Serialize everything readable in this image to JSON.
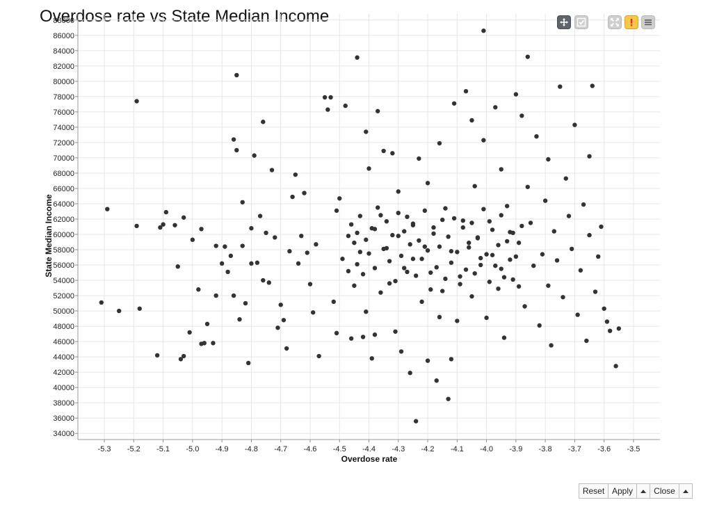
{
  "toolbar": {
    "tools": [
      {
        "name": "pan-tool",
        "icon": "move-icon",
        "active": true
      },
      {
        "name": "select-tool",
        "icon": "check-icon",
        "active": false
      },
      {
        "name": "fullscreen-tool",
        "icon": "expand-icon",
        "active": false
      },
      {
        "name": "warning-tool",
        "icon": "warning-icon",
        "active": false
      },
      {
        "name": "menu-tool",
        "icon": "menu-icon",
        "active": false
      }
    ]
  },
  "footer": {
    "reset_label": "Reset",
    "apply_label": "Apply",
    "close_label": "Close"
  },
  "chart_data": {
    "type": "scatter",
    "title": "Overdose rate vs State Median Income",
    "xlabel": "Overdose rate",
    "ylabel": "State Median Income",
    "xlim": [
      -5.39,
      -3.41
    ],
    "ylim": [
      33200,
      88800
    ],
    "xticks": [
      -5.3,
      -5.2,
      -5.1,
      -5.0,
      -4.9,
      -4.8,
      -4.7,
      -4.6,
      -4.5,
      -4.4,
      -4.3,
      -4.2,
      -4.1,
      -4.0,
      -3.9,
      -3.8,
      -3.7,
      -3.6,
      -3.5
    ],
    "yticks": [
      34000,
      36000,
      38000,
      40000,
      42000,
      44000,
      46000,
      48000,
      50000,
      52000,
      54000,
      56000,
      58000,
      60000,
      62000,
      64000,
      66000,
      68000,
      70000,
      72000,
      74000,
      76000,
      78000,
      80000,
      82000,
      84000,
      86000,
      88000
    ],
    "grid": true,
    "point_color": "#333333",
    "points": [
      [
        -5.31,
        51100
      ],
      [
        -5.29,
        63300
      ],
      [
        -5.25,
        50000
      ],
      [
        -5.19,
        61100
      ],
      [
        -5.19,
        77400
      ],
      [
        -5.18,
        50300
      ],
      [
        -5.12,
        44200
      ],
      [
        -5.11,
        60900
      ],
      [
        -5.1,
        61300
      ],
      [
        -5.09,
        62900
      ],
      [
        -5.06,
        61200
      ],
      [
        -5.05,
        55800
      ],
      [
        -5.04,
        43700
      ],
      [
        -5.03,
        62200
      ],
      [
        -5.03,
        44100
      ],
      [
        -5.01,
        47200
      ],
      [
        -5.0,
        59300
      ],
      [
        -4.98,
        52800
      ],
      [
        -4.97,
        60700
      ],
      [
        -4.97,
        45700
      ],
      [
        -4.96,
        45800
      ],
      [
        -4.95,
        48300
      ],
      [
        -4.93,
        45800
      ],
      [
        -4.92,
        58500
      ],
      [
        -4.92,
        52000
      ],
      [
        -4.9,
        56200
      ],
      [
        -4.89,
        58400
      ],
      [
        -4.88,
        55100
      ],
      [
        -4.87,
        57200
      ],
      [
        -4.86,
        72400
      ],
      [
        -4.86,
        52000
      ],
      [
        -4.85,
        71000
      ],
      [
        -4.85,
        80800
      ],
      [
        -4.84,
        48900
      ],
      [
        -4.83,
        64200
      ],
      [
        -4.83,
        58500
      ],
      [
        -4.82,
        51000
      ],
      [
        -4.81,
        43200
      ],
      [
        -4.8,
        60800
      ],
      [
        -4.8,
        56200
      ],
      [
        -4.79,
        70300
      ],
      [
        -4.78,
        56300
      ],
      [
        -4.77,
        62400
      ],
      [
        -4.76,
        74700
      ],
      [
        -4.76,
        54000
      ],
      [
        -4.75,
        60200
      ],
      [
        -4.74,
        53700
      ],
      [
        -4.73,
        68400
      ],
      [
        -4.72,
        59600
      ],
      [
        -4.71,
        47800
      ],
      [
        -4.7,
        50800
      ],
      [
        -4.69,
        48800
      ],
      [
        -4.68,
        45100
      ],
      [
        -4.67,
        57800
      ],
      [
        -4.66,
        64900
      ],
      [
        -4.65,
        67800
      ],
      [
        -4.64,
        56200
      ],
      [
        -4.63,
        59800
      ],
      [
        -4.62,
        65400
      ],
      [
        -4.61,
        57600
      ],
      [
        -4.6,
        53500
      ],
      [
        -4.59,
        49800
      ],
      [
        -4.58,
        58700
      ],
      [
        -4.57,
        44100
      ],
      [
        -4.55,
        77900
      ],
      [
        -4.54,
        76300
      ],
      [
        -4.53,
        77900
      ],
      [
        -4.52,
        51200
      ],
      [
        -4.51,
        63100
      ],
      [
        -4.51,
        47100
      ],
      [
        -4.5,
        64700
      ],
      [
        -4.49,
        56800
      ],
      [
        -4.48,
        76800
      ],
      [
        -4.47,
        59800
      ],
      [
        -4.46,
        46400
      ],
      [
        -4.45,
        53300
      ],
      [
        -4.44,
        83100
      ],
      [
        -4.44,
        60200
      ],
      [
        -4.43,
        57700
      ],
      [
        -4.42,
        46600
      ],
      [
        -4.41,
        73400
      ],
      [
        -4.41,
        49900
      ],
      [
        -4.4,
        68600
      ],
      [
        -4.39,
        43800
      ],
      [
        -4.38,
        46900
      ],
      [
        -4.38,
        60700
      ],
      [
        -4.37,
        76100
      ],
      [
        -4.36,
        62500
      ],
      [
        -4.35,
        70900
      ],
      [
        -4.34,
        58200
      ],
      [
        -4.33,
        53600
      ],
      [
        -4.32,
        70600
      ],
      [
        -4.31,
        47300
      ],
      [
        -4.3,
        65600
      ],
      [
        -4.3,
        59800
      ],
      [
        -4.29,
        44700
      ],
      [
        -4.28,
        55600
      ],
      [
        -4.27,
        62300
      ],
      [
        -4.26,
        41900
      ],
      [
        -4.25,
        61400
      ],
      [
        -4.25,
        56800
      ],
      [
        -4.24,
        35600
      ],
      [
        -4.23,
        69900
      ],
      [
        -4.22,
        51200
      ],
      [
        -4.21,
        58400
      ],
      [
        -4.2,
        66700
      ],
      [
        -4.2,
        43500
      ],
      [
        -4.19,
        55000
      ],
      [
        -4.18,
        60900
      ],
      [
        -4.17,
        40900
      ],
      [
        -4.16,
        71900
      ],
      [
        -4.16,
        49200
      ],
      [
        -4.15,
        52600
      ],
      [
        -4.14,
        63400
      ],
      [
        -4.13,
        38500
      ],
      [
        -4.12,
        43700
      ],
      [
        -4.12,
        57800
      ],
      [
        -4.11,
        77100
      ],
      [
        -4.1,
        48700
      ],
      [
        -4.09,
        54500
      ],
      [
        -4.08,
        61800
      ],
      [
        -4.07,
        78700
      ],
      [
        -4.06,
        58300
      ],
      [
        -4.05,
        74900
      ],
      [
        -4.05,
        51900
      ],
      [
        -4.04,
        66300
      ],
      [
        -4.03,
        59600
      ],
      [
        -4.02,
        56000
      ],
      [
        -4.01,
        86600
      ],
      [
        -4.01,
        72300
      ],
      [
        -4.0,
        49100
      ],
      [
        -3.99,
        61700
      ],
      [
        -3.98,
        57300
      ],
      [
        -3.97,
        76600
      ],
      [
        -3.96,
        52900
      ],
      [
        -3.95,
        68500
      ],
      [
        -3.95,
        55500
      ],
      [
        -3.94,
        46500
      ],
      [
        -3.93,
        63700
      ],
      [
        -3.92,
        60300
      ],
      [
        -3.91,
        54100
      ],
      [
        -3.9,
        78300
      ],
      [
        -3.89,
        58900
      ],
      [
        -3.88,
        75500
      ],
      [
        -3.87,
        50600
      ],
      [
        -3.86,
        83200
      ],
      [
        -3.86,
        66200
      ],
      [
        -3.85,
        61500
      ],
      [
        -3.84,
        55900
      ],
      [
        -3.83,
        72800
      ],
      [
        -3.82,
        48100
      ],
      [
        -3.81,
        57400
      ],
      [
        -3.8,
        64400
      ],
      [
        -3.79,
        53300
      ],
      [
        -3.79,
        69800
      ],
      [
        -3.78,
        45500
      ],
      [
        -3.77,
        60400
      ],
      [
        -3.76,
        56600
      ],
      [
        -3.75,
        79300
      ],
      [
        -3.74,
        51800
      ],
      [
        -3.73,
        67300
      ],
      [
        -3.72,
        62400
      ],
      [
        -3.71,
        58100
      ],
      [
        -3.7,
        74300
      ],
      [
        -3.69,
        49500
      ],
      [
        -3.68,
        55300
      ],
      [
        -3.67,
        63900
      ],
      [
        -3.66,
        46100
      ],
      [
        -3.65,
        59900
      ],
      [
        -3.65,
        70200
      ],
      [
        -3.64,
        79400
      ],
      [
        -3.63,
        52500
      ],
      [
        -3.62,
        57100
      ],
      [
        -3.61,
        61000
      ],
      [
        -3.6,
        50300
      ],
      [
        -3.59,
        48600
      ],
      [
        -3.58,
        47400
      ],
      [
        -3.56,
        42800
      ],
      [
        -3.55,
        47700
      ],
      [
        -4.47,
        55200
      ],
      [
        -4.46,
        61300
      ],
      [
        -4.45,
        58900
      ],
      [
        -4.44,
        56100
      ],
      [
        -4.43,
        62400
      ],
      [
        -4.42,
        54800
      ],
      [
        -4.41,
        59300
      ],
      [
        -4.4,
        57500
      ],
      [
        -4.39,
        60800
      ],
      [
        -4.38,
        55600
      ],
      [
        -4.37,
        63500
      ],
      [
        -4.36,
        52400
      ],
      [
        -4.35,
        58100
      ],
      [
        -4.34,
        61700
      ],
      [
        -4.33,
        56500
      ],
      [
        -4.32,
        59900
      ],
      [
        -4.31,
        53900
      ],
      [
        -4.3,
        62800
      ],
      [
        -4.29,
        57200
      ],
      [
        -4.28,
        60400
      ],
      [
        -4.27,
        55100
      ],
      [
        -4.26,
        58700
      ],
      [
        -4.25,
        61200
      ],
      [
        -4.24,
        54600
      ],
      [
        -4.23,
        59200
      ],
      [
        -4.22,
        56800
      ],
      [
        -4.21,
        63100
      ],
      [
        -4.2,
        57900
      ],
      [
        -4.19,
        52800
      ],
      [
        -4.18,
        60100
      ],
      [
        -4.17,
        55700
      ],
      [
        -4.16,
        58400
      ],
      [
        -4.15,
        61900
      ],
      [
        -4.14,
        54200
      ],
      [
        -4.13,
        59700
      ],
      [
        -4.12,
        56300
      ],
      [
        -4.11,
        62100
      ],
      [
        -4.1,
        57700
      ],
      [
        -4.09,
        53500
      ],
      [
        -4.08,
        60900
      ],
      [
        -4.07,
        55400
      ],
      [
        -4.06,
        58900
      ],
      [
        -4.05,
        61500
      ],
      [
        -4.04,
        54900
      ],
      [
        -4.03,
        59500
      ],
      [
        -4.02,
        56900
      ],
      [
        -4.01,
        63300
      ],
      [
        -4.0,
        57400
      ],
      [
        -3.99,
        53800
      ],
      [
        -3.98,
        60600
      ],
      [
        -3.97,
        55900
      ],
      [
        -3.96,
        58600
      ],
      [
        -3.95,
        62500
      ],
      [
        -3.94,
        54400
      ],
      [
        -3.93,
        59100
      ],
      [
        -3.92,
        56700
      ],
      [
        -3.91,
        60200
      ],
      [
        -3.9,
        57100
      ],
      [
        -3.89,
        53200
      ],
      [
        -3.88,
        61100
      ]
    ]
  }
}
